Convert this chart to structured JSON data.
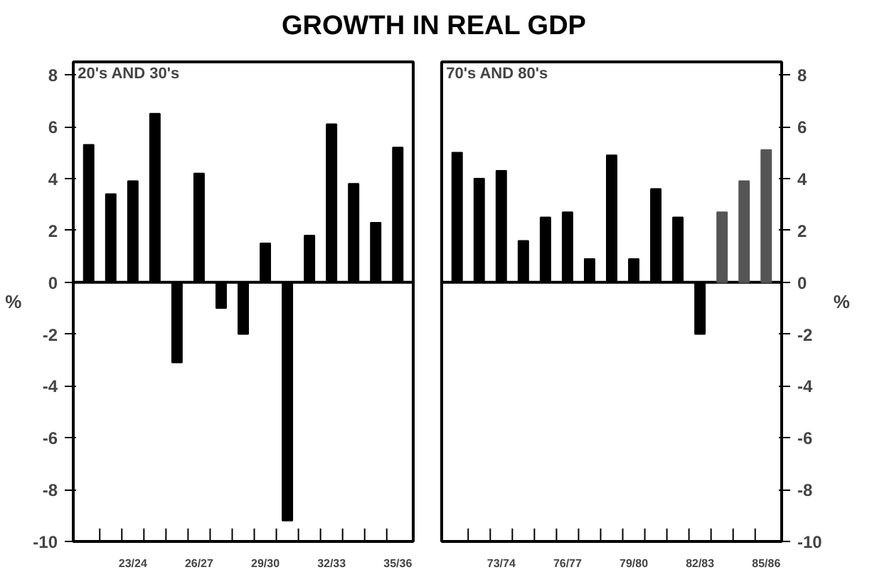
{
  "chart_data": [
    {
      "type": "bar",
      "title": "GROWTH IN REAL GDP",
      "subtitle": "20's AND 30's",
      "ylabel": "%",
      "categories": [
        null,
        null,
        "23/24",
        null,
        null,
        "26/27",
        null,
        null,
        "29/30",
        null,
        null,
        "32/33",
        null,
        null,
        "35/36"
      ],
      "values": [
        5.3,
        3.4,
        3.9,
        6.5,
        -3.1,
        4.2,
        -1.0,
        -2.0,
        1.5,
        -9.2,
        1.8,
        6.1,
        3.8,
        2.3,
        5.2
      ],
      "color": "#000000",
      "ylim": [
        -10,
        8.5
      ],
      "yticks": [
        -10,
        -8,
        -6,
        -4,
        -2,
        0,
        2,
        4,
        6,
        8
      ]
    },
    {
      "type": "bar",
      "subtitle": "70's AND 80's",
      "y2label": "%",
      "categories": [
        null,
        null,
        "73/74",
        null,
        null,
        "76/77",
        null,
        null,
        "79/80",
        null,
        null,
        "82/83",
        null,
        null,
        "85/86"
      ],
      "series": [
        {
          "axis": "y2",
          "values": [
            5.0,
            4.0,
            4.3,
            1.6,
            2.5,
            2.7,
            0.9,
            4.9,
            0.9,
            3.6,
            2.5,
            -2.0,
            2.7,
            3.9,
            5.1
          ],
          "colors": [
            "#000000",
            "#000000",
            "#000000",
            "#000000",
            "#000000",
            "#000000",
            "#000000",
            "#000000",
            "#000000",
            "#000000",
            "#000000",
            "#000000",
            "#555555",
            "#555555",
            "#555555"
          ]
        }
      ],
      "y2lim": [
        -10,
        8.5
      ],
      "y2ticks": [
        -10,
        -8,
        -6,
        -4,
        -2,
        0,
        2,
        4,
        6,
        8
      ]
    }
  ]
}
